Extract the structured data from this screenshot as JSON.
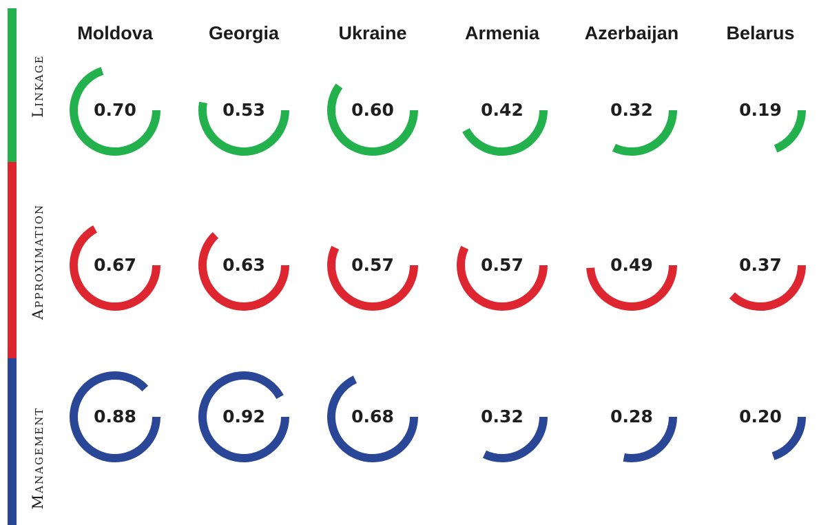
{
  "chart_data": {
    "type": "radial-gauge-grid",
    "countries": [
      "Moldova",
      "Georgia",
      "Ukraine",
      "Armenia",
      "Azerbaijan",
      "Belarus"
    ],
    "dimensions": [
      {
        "name": "Linkage",
        "color": "#23b14d",
        "values": [
          0.7,
          0.53,
          0.6,
          0.42,
          0.32,
          0.19
        ],
        "labels": [
          "0.70",
          "0.53",
          "0.60",
          "0.42",
          "0.32",
          "0.19"
        ]
      },
      {
        "name": "Approximation",
        "color": "#dd2630",
        "values": [
          0.67,
          0.63,
          0.57,
          0.57,
          0.49,
          0.37
        ],
        "labels": [
          "0.67",
          "0.63",
          "0.57",
          "0.57",
          "0.49",
          "0.37"
        ]
      },
      {
        "name": "Management",
        "color": "#2a4696",
        "values": [
          0.88,
          0.92,
          0.68,
          0.32,
          0.28,
          0.2
        ],
        "labels": [
          "0.88",
          "0.92",
          "0.68",
          "0.32",
          "0.28",
          "0.20"
        ]
      }
    ],
    "value_range": [
      0,
      1
    ]
  }
}
